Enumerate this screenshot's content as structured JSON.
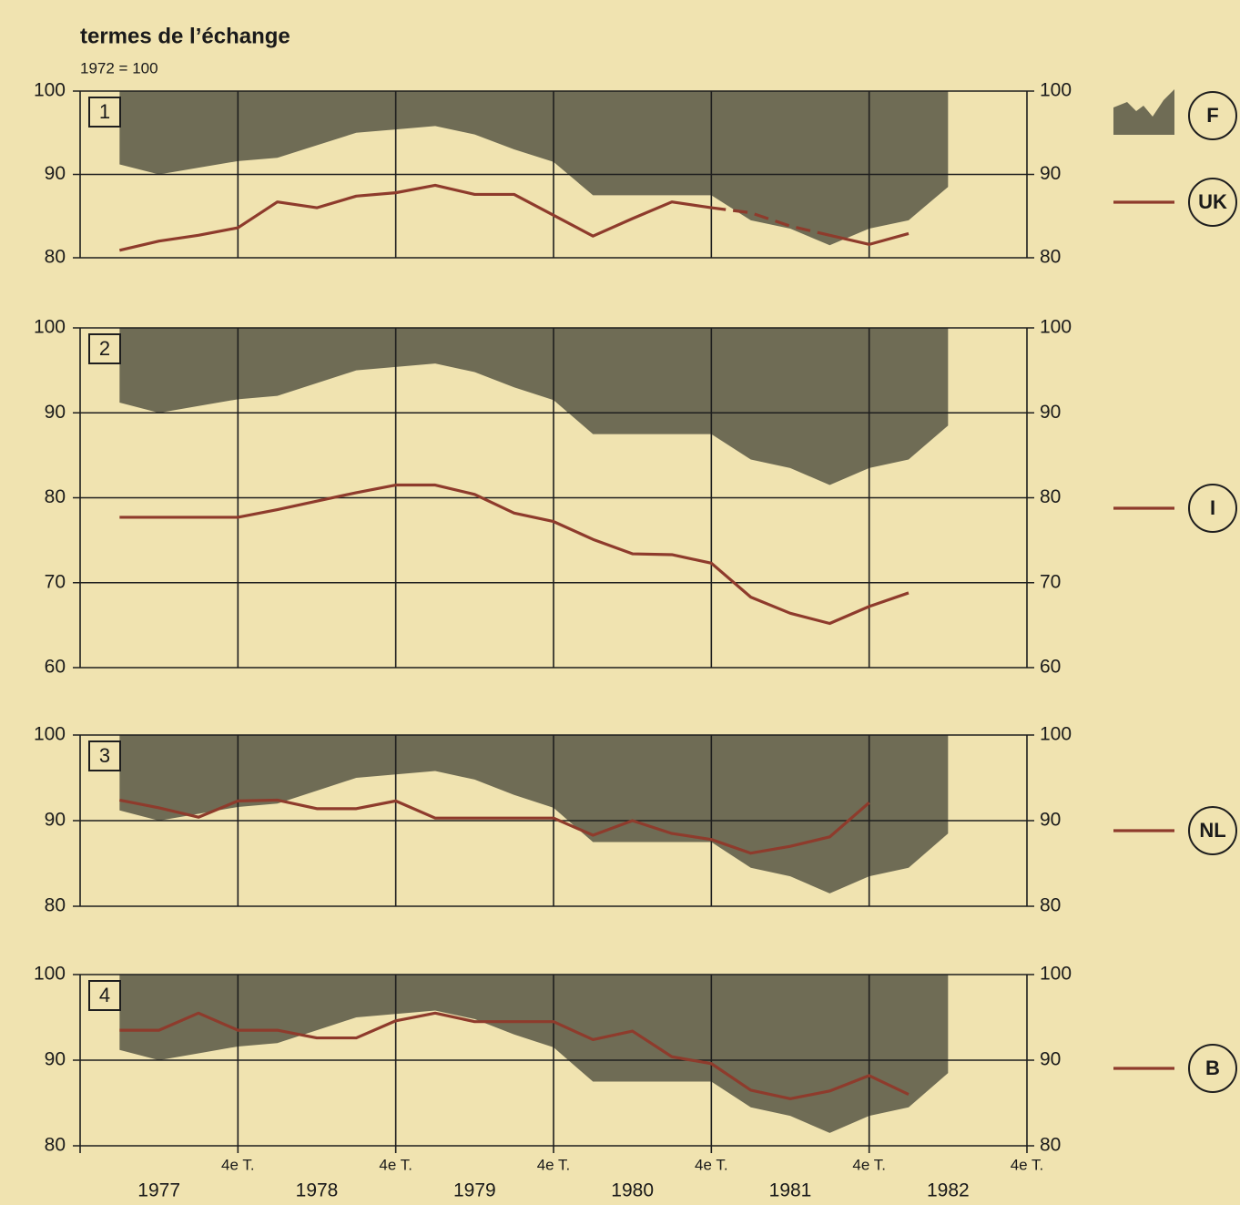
{
  "chart_data": [
    {
      "type": "line",
      "title": "termes de l’échange",
      "subtitle": "1972 = 100",
      "label": "1",
      "xlim": [
        0,
        24
      ],
      "ylim": [
        80,
        100
      ],
      "yticks": [
        80,
        90,
        100
      ],
      "xticks": [
        {
          "value": 4,
          "label": "4e T."
        },
        {
          "value": 8,
          "label": "4e T."
        },
        {
          "value": 12,
          "label": "4e T."
        },
        {
          "value": 16,
          "label": "4e T."
        },
        {
          "value": 20,
          "label": "4e T."
        },
        {
          "value": 24,
          "label": "4e T."
        }
      ],
      "show_xtick_labels": false,
      "series": [
        {
          "name": "F",
          "type": "area",
          "color": "#6f6c55",
          "x": [
            1,
            2,
            3,
            4,
            5,
            6,
            7,
            8,
            9,
            10,
            11,
            12,
            13,
            14,
            15,
            16,
            17,
            18,
            19,
            20,
            21,
            22
          ],
          "values": [
            91.2,
            90.0,
            90.8,
            91.6,
            92.0,
            93.5,
            95.0,
            95.4,
            95.8,
            94.8,
            93.0,
            91.5,
            87.5,
            87.5,
            87.5,
            87.5,
            84.5,
            83.5,
            81.5,
            83.5,
            84.5,
            88.5
          ]
        },
        {
          "name": "UK",
          "type": "line",
          "color": "#8e3b2c",
          "dashed_x": [
            16,
            19
          ],
          "x": [
            1,
            2,
            3,
            4,
            5,
            6,
            7,
            8,
            9,
            10,
            11,
            12,
            13,
            14,
            15,
            16,
            17,
            18,
            19,
            20,
            21
          ],
          "values": [
            80.9,
            82.0,
            82.7,
            83.6,
            86.7,
            86.0,
            87.4,
            87.8,
            88.7,
            87.6,
            87.6,
            85.1,
            82.6,
            84.7,
            86.7,
            86.0,
            85.4,
            83.8,
            82.7,
            81.6,
            82.9
          ]
        }
      ]
    },
    {
      "type": "line",
      "label": "2",
      "xlim": [
        0,
        24
      ],
      "ylim": [
        60,
        100
      ],
      "yticks": [
        60,
        70,
        80,
        90,
        100
      ],
      "xticks": [
        {
          "value": 4,
          "label": "4e T."
        },
        {
          "value": 8,
          "label": "4e T."
        },
        {
          "value": 12,
          "label": "4e T."
        },
        {
          "value": 16,
          "label": "4e T."
        },
        {
          "value": 20,
          "label": "4e T."
        },
        {
          "value": 24,
          "label": "4e T."
        }
      ],
      "show_xtick_labels": false,
      "series": [
        {
          "type": "area",
          "color": "#6f6c55",
          "x": [
            1,
            2,
            3,
            4,
            5,
            6,
            7,
            8,
            9,
            10,
            11,
            12,
            13,
            14,
            15,
            16,
            17,
            18,
            19,
            20,
            21,
            22
          ],
          "values": [
            91.2,
            90.0,
            90.8,
            91.6,
            92.0,
            93.5,
            95.0,
            95.4,
            95.8,
            94.8,
            93.0,
            91.5,
            87.5,
            87.5,
            87.5,
            87.5,
            84.5,
            83.5,
            81.5,
            83.5,
            84.5,
            88.5
          ]
        },
        {
          "name": "I",
          "type": "line",
          "color": "#8e3b2c",
          "x": [
            1,
            2,
            3,
            4,
            5,
            6,
            7,
            8,
            9,
            10,
            11,
            12,
            13,
            14,
            15,
            16,
            17,
            18,
            19,
            20,
            21
          ],
          "values": [
            77.7,
            77.7,
            77.7,
            77.7,
            78.6,
            79.6,
            80.6,
            81.5,
            81.5,
            80.4,
            78.2,
            77.2,
            75.1,
            73.4,
            73.3,
            72.3,
            68.3,
            66.4,
            65.2,
            67.2,
            68.8
          ]
        }
      ]
    },
    {
      "type": "line",
      "label": "3",
      "xlim": [
        0,
        24
      ],
      "ylim": [
        80,
        100
      ],
      "yticks": [
        80,
        90,
        100
      ],
      "xticks": [
        {
          "value": 4,
          "label": "4e T."
        },
        {
          "value": 8,
          "label": "4e T."
        },
        {
          "value": 12,
          "label": "4e T."
        },
        {
          "value": 16,
          "label": "4e T."
        },
        {
          "value": 20,
          "label": "4e T."
        },
        {
          "value": 24,
          "label": "4e T."
        }
      ],
      "show_xtick_labels": false,
      "series": [
        {
          "type": "area",
          "color": "#6f6c55",
          "x": [
            1,
            2,
            3,
            4,
            5,
            6,
            7,
            8,
            9,
            10,
            11,
            12,
            13,
            14,
            15,
            16,
            17,
            18,
            19,
            20,
            21,
            22
          ],
          "values": [
            91.2,
            90.0,
            90.8,
            91.6,
            92.0,
            93.5,
            95.0,
            95.4,
            95.8,
            94.8,
            93.0,
            91.5,
            87.5,
            87.5,
            87.5,
            87.5,
            84.5,
            83.5,
            81.5,
            83.5,
            84.5,
            88.5
          ]
        },
        {
          "name": "NL",
          "type": "line",
          "color": "#8e3b2c",
          "x": [
            1,
            2,
            3,
            4,
            5,
            6,
            7,
            8,
            9,
            10,
            11,
            12,
            13,
            14,
            15,
            16,
            17,
            18,
            19,
            20
          ],
          "values": [
            92.4,
            91.5,
            90.4,
            92.3,
            92.4,
            91.4,
            91.4,
            92.3,
            90.3,
            90.3,
            90.3,
            90.3,
            88.3,
            90.0,
            88.5,
            87.8,
            86.2,
            87.0,
            88.1,
            92.1
          ]
        }
      ]
    },
    {
      "type": "line",
      "label": "4",
      "xlim": [
        0,
        24
      ],
      "ylim": [
        80,
        100
      ],
      "yticks": [
        80,
        90,
        100
      ],
      "xticks": [
        {
          "value": 4,
          "label": "4e T."
        },
        {
          "value": 8,
          "label": "4e T."
        },
        {
          "value": 12,
          "label": "4e T."
        },
        {
          "value": 16,
          "label": "4e T."
        },
        {
          "value": 20,
          "label": "4e T."
        },
        {
          "value": 24,
          "label": "4e T."
        }
      ],
      "show_xtick_labels": true,
      "year_labels": [
        "1977",
        "1978",
        "1979",
        "1980",
        "1981",
        "1982"
      ],
      "series": [
        {
          "type": "area",
          "color": "#6f6c55",
          "x": [
            1,
            2,
            3,
            4,
            5,
            6,
            7,
            8,
            9,
            10,
            11,
            12,
            13,
            14,
            15,
            16,
            17,
            18,
            19,
            20,
            21,
            22
          ],
          "values": [
            91.2,
            90.0,
            90.8,
            91.6,
            92.0,
            93.5,
            95.0,
            95.4,
            95.8,
            94.8,
            93.0,
            91.5,
            87.5,
            87.5,
            87.5,
            87.5,
            84.5,
            83.5,
            81.5,
            83.5,
            84.5,
            88.5
          ]
        },
        {
          "name": "B",
          "type": "line",
          "color": "#8e3b2c",
          "x": [
            1,
            2,
            3,
            4,
            5,
            6,
            7,
            8,
            9,
            10,
            11,
            12,
            13,
            14,
            15,
            16,
            17,
            18,
            19,
            20,
            21
          ],
          "values": [
            93.5,
            93.5,
            95.5,
            93.5,
            93.5,
            92.6,
            92.6,
            94.6,
            95.5,
            94.5,
            94.5,
            94.5,
            92.4,
            93.4,
            90.4,
            89.6,
            86.5,
            85.5,
            86.4,
            88.2,
            86.0
          ]
        }
      ]
    }
  ]
}
